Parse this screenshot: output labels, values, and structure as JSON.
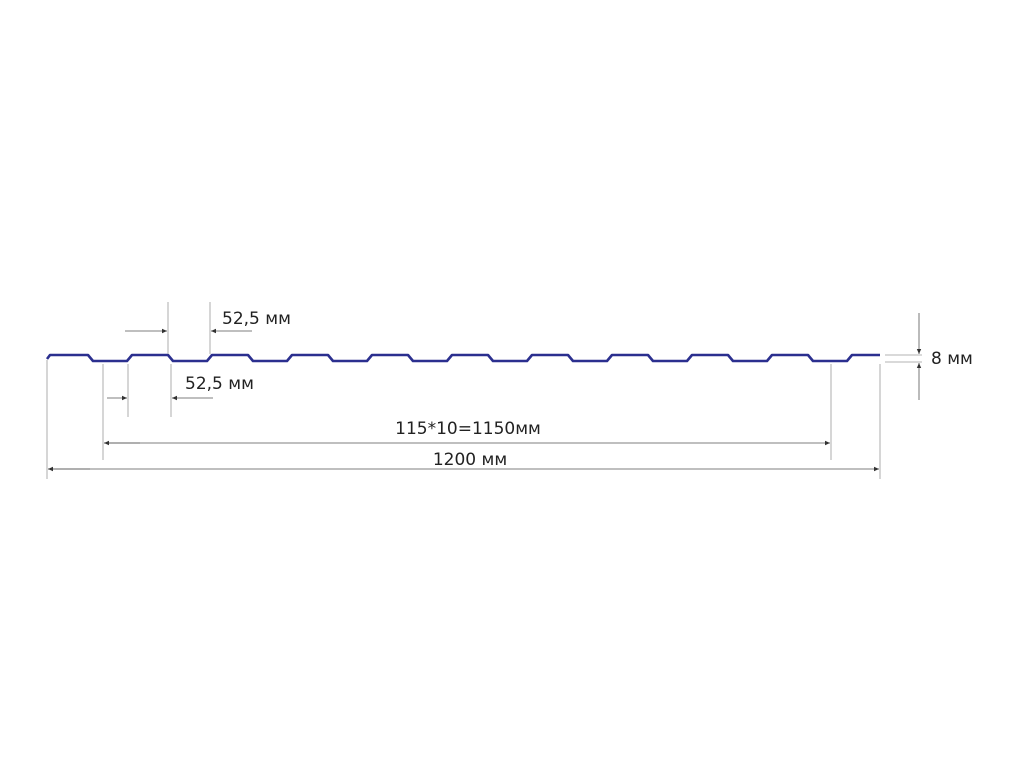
{
  "diagram": {
    "profile_color": "#2b2f8f",
    "labels": {
      "top_pitch": "52,5 мм",
      "bottom_pitch": "52,5 мм",
      "height": "8 мм",
      "working_width": "115*10=1150мм",
      "total_width": "1200 мм"
    }
  }
}
